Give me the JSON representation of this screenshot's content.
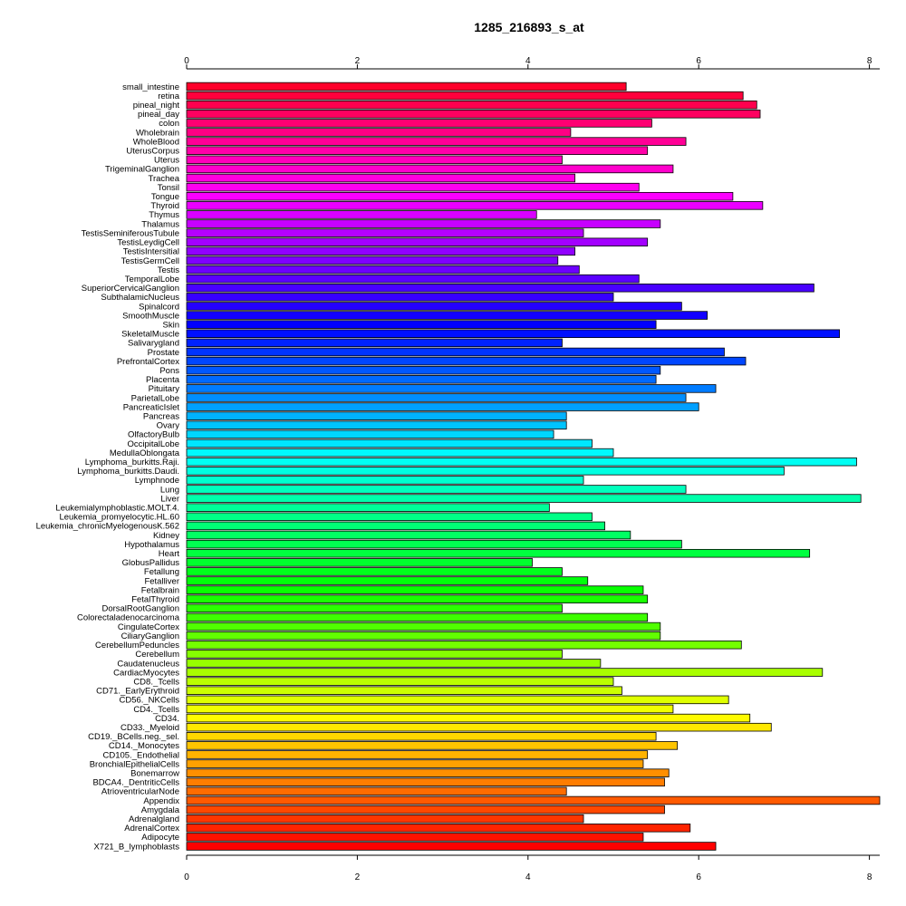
{
  "chart_data": {
    "type": "bar",
    "orientation": "horizontal",
    "title": "1285_216893_s_at",
    "xlabel": "",
    "ylabel": "",
    "xlim": [
      0,
      8.1
    ],
    "xticks": [
      0,
      2,
      4,
      6,
      8
    ],
    "grid": false,
    "legend": "none",
    "categories": [
      "small_intestine",
      "retina",
      "pineal_night",
      "pineal_day",
      "colon",
      "Wholebrain",
      "WholeBlood",
      "UterusCorpus",
      "Uterus",
      "TrigeminalGanglion",
      "Trachea",
      "Tonsil",
      "Tongue",
      "Thyroid",
      "Thymus",
      "Thalamus",
      "TestisSeminiferousTubule",
      "TestisLeydigCell",
      "TestisIntersitial",
      "TestisGermCell",
      "Testis",
      "TemporalLobe",
      "SuperiorCervicalGanglion",
      "SubthalamicNucleus",
      "Spinalcord",
      "SmoothMuscle",
      "Skin",
      "SkeletalMuscle",
      "Salivarygland",
      "Prostate",
      "PrefrontalCortex",
      "Pons",
      "Placenta",
      "Pituitary",
      "ParietalLobe",
      "PancreaticIslet",
      "Pancreas",
      "Ovary",
      "OlfactoryBulb",
      "OccipitalLobe",
      "MedullaOblongata",
      "Lymphoma_burkitts.Raji.",
      "Lymphoma_burkitts.Daudi.",
      "Lymphnode",
      "Lung",
      "Liver",
      "Leukemialymphoblastic.MOLT.4.",
      "Leukemia_promyelocytic.HL.60",
      "Leukemia_chronicMyelogenousK.562",
      "Kidney",
      "Hypothalamus",
      "Heart",
      "GlobusPallidus",
      "Fetallung",
      "Fetalliver",
      "Fetalbrain",
      "FetalThyroid",
      "DorsalRootGanglion",
      "Colorectaladenocarcinoma",
      "CingulateCortex",
      "CiliaryGanglion",
      "CerebellumPeduncles",
      "Cerebellum",
      "Caudatenucleus",
      "CardiacMyocytes",
      "CD8._Tcells",
      "CD71._EarlyErythroid",
      "CD56._NKCells",
      "CD4._Tcells",
      "CD34.",
      "CD33._Myeloid",
      "CD19._BCells.neg._sel.",
      "CD14._Monocytes",
      "CD105._Endothelial",
      "BronchialEpithelialCells",
      "Bonemarrow",
      "BDCA4._DentriticCells",
      "AtrioventricularNode",
      "Appendix",
      "Amygdala",
      "Adrenalgland",
      "AdrenalCortex",
      "Adipocyte",
      "X721_B_lymphoblasts"
    ],
    "values": [
      5.15,
      6.52,
      6.68,
      6.72,
      5.45,
      4.5,
      5.85,
      5.4,
      4.4,
      5.7,
      4.55,
      5.3,
      6.4,
      6.75,
      4.1,
      5.55,
      4.65,
      5.4,
      4.55,
      4.35,
      4.6,
      5.3,
      7.35,
      5.0,
      5.8,
      6.1,
      5.5,
      7.65,
      4.4,
      6.3,
      6.55,
      5.55,
      5.5,
      6.2,
      5.85,
      6.0,
      4.45,
      4.45,
      4.3,
      4.75,
      5.0,
      7.85,
      7.0,
      4.65,
      5.85,
      7.9,
      4.25,
      4.75,
      4.9,
      5.2,
      5.8,
      7.3,
      4.05,
      4.4,
      4.7,
      5.35,
      5.4,
      4.4,
      5.4,
      5.55,
      5.55,
      6.5,
      4.4,
      4.85,
      7.45,
      5.0,
      5.1,
      6.35,
      5.7,
      6.6,
      6.85,
      5.5,
      5.75,
      5.4,
      5.35,
      5.65,
      5.6,
      4.45,
      8.15,
      5.6,
      4.65,
      5.9,
      5.35,
      6.2
    ]
  }
}
